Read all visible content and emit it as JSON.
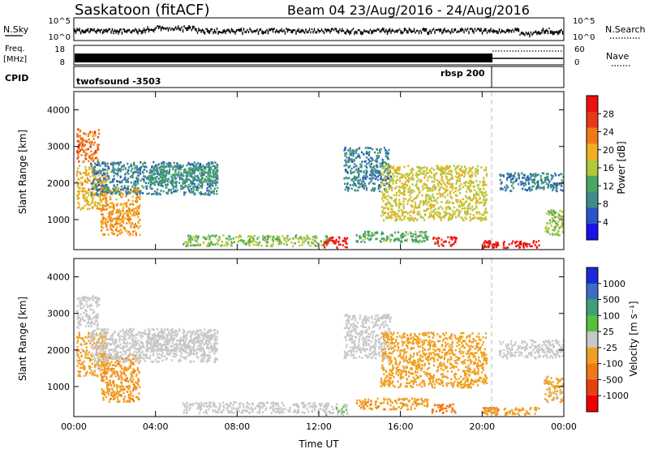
{
  "header": {
    "title": "Saskatoon (fitACF)",
    "beam_and_dates": "Beam 04 23/Aug/2016 - 24/Aug/2016"
  },
  "noise_panel": {
    "left_label": "N.Sky",
    "left_ticks": [
      "10^5",
      "10^0"
    ],
    "right_ticks": [
      "10^5",
      "10^0"
    ],
    "right_label": "N.Search"
  },
  "freq_panel": {
    "left_label_line1": "Freq.",
    "left_label_line2": "[MHz]",
    "left_ticks": [
      "18",
      "8"
    ],
    "right_ticks": [
      "60",
      "0"
    ],
    "right_label": "Nave"
  },
  "cpid_panel": {
    "label": "CPID",
    "programs": [
      "twofsound -3503",
      "rbsp 200"
    ]
  },
  "x_axis": {
    "ticks": [
      "00:00",
      "04:00",
      "08:00",
      "12:00",
      "16:00",
      "20:00",
      "00:00"
    ],
    "label": "Time UT"
  },
  "colors": {
    "power_scale": [
      "#1a10e8",
      "#2a55c8",
      "#3f8c8a",
      "#4aa860",
      "#b0c83a",
      "#f0b020",
      "#f07a18",
      "#e83818",
      "#f01010"
    ],
    "velocity_scale": [
      "#1a2ad8",
      "#3a6fc0",
      "#3f9f7a",
      "#55c03a",
      "#c8c8c8",
      "#f0a020",
      "#f07818",
      "#e84010",
      "#f00000"
    ]
  },
  "chart_data": [
    {
      "type": "heatmap",
      "title": "",
      "xlabel": "",
      "ylabel": "Slant Range [km]",
      "ylim": [
        180,
        4500
      ],
      "y_ticks": [
        "1000",
        "2000",
        "3000",
        "4000"
      ],
      "colorbar": {
        "label": "Power [dB]",
        "ticks": [
          "4",
          "8",
          "12",
          "16",
          "20",
          "24",
          "28"
        ],
        "range": [
          0,
          30
        ]
      },
      "echo_regions": [
        {
          "t0": 0.1,
          "t1": 1.2,
          "r0": 2600,
          "r1": 3500,
          "value": 22
        },
        {
          "t0": 0.1,
          "t1": 1.6,
          "r0": 1300,
          "r1": 2500,
          "value": 18
        },
        {
          "t0": 1.3,
          "t1": 3.2,
          "r0": 600,
          "r1": 1900,
          "value": 20
        },
        {
          "t0": 0.8,
          "t1": 7.0,
          "r0": 1700,
          "r1": 2600,
          "value": 8
        },
        {
          "t0": 3.5,
          "t1": 7.0,
          "r0": 2000,
          "r1": 2500,
          "value": 10
        },
        {
          "t0": 5.3,
          "t1": 12.5,
          "r0": 300,
          "r1": 600,
          "value": 14
        },
        {
          "t0": 12.2,
          "t1": 13.4,
          "r0": 250,
          "r1": 550,
          "value": 28
        },
        {
          "t0": 13.2,
          "t1": 15.5,
          "r0": 1800,
          "r1": 3000,
          "value": 8
        },
        {
          "t0": 13.8,
          "t1": 17.3,
          "r0": 400,
          "r1": 700,
          "value": 12
        },
        {
          "t0": 15.0,
          "t1": 20.2,
          "r0": 1000,
          "r1": 2500,
          "value": 16
        },
        {
          "t0": 17.5,
          "t1": 18.7,
          "r0": 300,
          "r1": 550,
          "value": 27
        },
        {
          "t0": 20.0,
          "t1": 20.8,
          "r0": 250,
          "r1": 450,
          "value": 28
        },
        {
          "t0": 21.0,
          "t1": 22.8,
          "r0": 250,
          "r1": 450,
          "value": 29
        },
        {
          "t0": 20.8,
          "t1": 24.0,
          "r0": 1800,
          "r1": 2300,
          "value": 8
        },
        {
          "t0": 23.0,
          "t1": 24.0,
          "r0": 600,
          "r1": 1300,
          "value": 14
        }
      ]
    },
    {
      "type": "heatmap",
      "title": "",
      "xlabel": "Time UT",
      "ylabel": "Slant Range [km]",
      "ylim": [
        180,
        4500
      ],
      "y_ticks": [
        "1000",
        "2000",
        "3000",
        "4000"
      ],
      "colorbar": {
        "label": "Velocity [m s⁻¹]",
        "ticks": [
          "1000",
          "500",
          "100",
          "25",
          "-25",
          "-100",
          "-500",
          "-1000"
        ],
        "range": [
          -1000,
          1000
        ]
      },
      "echo_regions": [
        {
          "t0": 0.1,
          "t1": 1.2,
          "r0": 2600,
          "r1": 3500,
          "value": 0
        },
        {
          "t0": 0.1,
          "t1": 1.6,
          "r0": 1300,
          "r1": 2500,
          "value": -150
        },
        {
          "t0": 1.3,
          "t1": 3.2,
          "r0": 600,
          "r1": 1900,
          "value": -300
        },
        {
          "t0": 0.8,
          "t1": 7.0,
          "r0": 1700,
          "r1": 2600,
          "value": 0
        },
        {
          "t0": 3.5,
          "t1": 7.0,
          "r0": 2000,
          "r1": 2500,
          "value": 10
        },
        {
          "t0": 5.3,
          "t1": 12.5,
          "r0": 300,
          "r1": 600,
          "value": 0
        },
        {
          "t0": 12.2,
          "t1": 13.4,
          "r0": 250,
          "r1": 550,
          "value": 60
        },
        {
          "t0": 13.2,
          "t1": 15.5,
          "r0": 1800,
          "r1": 3000,
          "value": 0
        },
        {
          "t0": 13.8,
          "t1": 17.3,
          "r0": 400,
          "r1": 700,
          "value": -300
        },
        {
          "t0": 15.0,
          "t1": 20.2,
          "r0": 1000,
          "r1": 2500,
          "value": -250
        },
        {
          "t0": 17.5,
          "t1": 18.7,
          "r0": 300,
          "r1": 550,
          "value": -400
        },
        {
          "t0": 20.0,
          "t1": 20.8,
          "r0": 250,
          "r1": 450,
          "value": -300
        },
        {
          "t0": 21.0,
          "t1": 22.8,
          "r0": 250,
          "r1": 450,
          "value": -200
        },
        {
          "t0": 20.8,
          "t1": 24.0,
          "r0": 1800,
          "r1": 2300,
          "value": 0
        },
        {
          "t0": 23.0,
          "t1": 24.0,
          "r0": 600,
          "r1": 1300,
          "value": -150
        }
      ]
    }
  ]
}
